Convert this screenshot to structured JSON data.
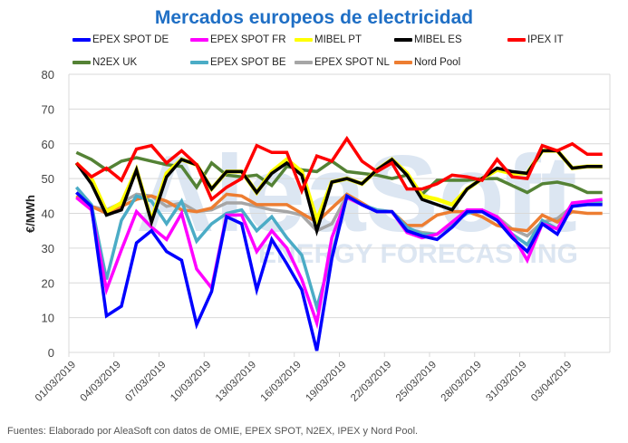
{
  "chart_data": {
    "type": "line",
    "title": "Mercados europeos de electricidad",
    "xlabel": "",
    "ylabel": "€/MWh",
    "ylim": [
      0,
      80
    ],
    "yticks": [
      0,
      10,
      20,
      30,
      40,
      50,
      60,
      70,
      80
    ],
    "grid": true,
    "legend_position": "top",
    "x": [
      "01/03/2019",
      "02/03/2019",
      "03/03/2019",
      "04/03/2019",
      "05/03/2019",
      "06/03/2019",
      "07/03/2019",
      "08/03/2019",
      "09/03/2019",
      "10/03/2019",
      "11/03/2019",
      "12/03/2019",
      "13/03/2019",
      "14/03/2019",
      "15/03/2019",
      "16/03/2019",
      "17/03/2019",
      "18/03/2019",
      "19/03/2019",
      "20/03/2019",
      "21/03/2019",
      "22/03/2019",
      "23/03/2019",
      "24/03/2019",
      "25/03/2019",
      "26/03/2019",
      "27/03/2019",
      "28/03/2019",
      "29/03/2019",
      "30/03/2019",
      "31/03/2019",
      "01/04/2019",
      "02/04/2019",
      "03/04/2019",
      "04/04/2019",
      "05/04/2019"
    ],
    "xtick_labels": [
      "01/03/2019",
      "04/03/2019",
      "07/03/2019",
      "10/03/2019",
      "13/03/2019",
      "16/03/2019",
      "19/03/2019",
      "22/03/2019",
      "25/03/2019",
      "28/03/2019",
      "31/03/2019",
      "03/04/2019"
    ],
    "series": [
      {
        "name": "EPEX SPOT DE",
        "color": "#0000ff",
        "values": [
          46,
          42,
          10.5,
          13.3,
          31.5,
          35,
          29,
          26.5,
          8,
          17.5,
          39,
          37,
          18,
          32.5,
          25.5,
          18,
          0.5,
          27,
          45,
          42.5,
          40.5,
          40.5,
          35,
          33.5,
          32.5,
          36,
          40.5,
          40.5,
          38,
          33,
          29,
          37,
          34,
          42,
          42.5,
          42.5
        ]
      },
      {
        "name": "EPEX SPOT FR",
        "color": "#ff00ff",
        "values": [
          44.5,
          41,
          18,
          29.5,
          40.5,
          36,
          32.5,
          40,
          24,
          18.5,
          39.5,
          39.5,
          29,
          35,
          30,
          21,
          8.5,
          33,
          44.5,
          42.5,
          40.5,
          40.5,
          34.5,
          33,
          34,
          37.5,
          41,
          41,
          39,
          34,
          26.5,
          37,
          35.5,
          43,
          43.5,
          44
        ]
      },
      {
        "name": "MIBEL PT",
        "color": "#ffff00",
        "values": [
          54.5,
          50,
          40.5,
          43,
          52.5,
          38,
          51.5,
          55.5,
          54,
          47,
          52,
          52,
          46,
          52,
          55.5,
          52,
          38,
          49,
          50,
          48.5,
          52.5,
          55.5,
          51.5,
          45,
          44,
          42.5,
          47,
          50,
          52.5,
          51.5,
          51.5,
          58,
          58,
          53,
          53.5,
          53.5
        ]
      },
      {
        "name": "MIBEL ES",
        "color": "#000000",
        "values": [
          54.5,
          48.5,
          39.5,
          41,
          52.5,
          37.5,
          50.5,
          55.5,
          54,
          47,
          52,
          52,
          46,
          51.5,
          54.5,
          51,
          35,
          49,
          50,
          48.5,
          52.5,
          55.5,
          51,
          44,
          42.5,
          41,
          47,
          50,
          53,
          52,
          51.5,
          58,
          58,
          53,
          53.5,
          53.5
        ]
      },
      {
        "name": "IPEX IT",
        "color": "#ff0000",
        "values": [
          54.5,
          50.5,
          53,
          49.5,
          58.5,
          59.5,
          54.5,
          58,
          54,
          44,
          47.5,
          50,
          59.5,
          57.5,
          57.5,
          46.5,
          56.5,
          55,
          61.5,
          55,
          52,
          54.5,
          47,
          47,
          48.5,
          51,
          50.5,
          49.5,
          55.5,
          50.5,
          50,
          59.5,
          58,
          60,
          57,
          57
        ]
      },
      {
        "name": "N2EX UK",
        "color": "#548235",
        "values": [
          57.5,
          55.5,
          52.5,
          55,
          56,
          55,
          54,
          53.5,
          47.5,
          54.5,
          51,
          50.5,
          51,
          48,
          53.5,
          52.5,
          52,
          55,
          52,
          51.5,
          51,
          50,
          51,
          45.5,
          49.5,
          49.5,
          49.5,
          50,
          50,
          48,
          46,
          48.5,
          49,
          48,
          46,
          46
        ]
      },
      {
        "name": "EPEX SPOT BE",
        "color": "#4bacc6",
        "values": [
          47.5,
          42.5,
          21,
          38,
          45,
          43.5,
          37,
          43.5,
          32,
          37,
          40,
          41,
          35,
          39,
          33,
          28,
          13,
          28,
          45,
          42.5,
          41,
          40.5,
          36,
          34,
          34,
          37,
          40,
          41,
          38,
          34,
          31,
          38,
          35.5,
          42.5,
          43.5,
          43.5
        ]
      },
      {
        "name": "EPEX SPOT NL",
        "color": "#a6a6a6",
        "values": [
          46,
          42,
          41,
          43,
          45.5,
          45,
          42,
          43,
          40.5,
          41,
          43,
          43,
          42,
          41,
          40.5,
          39.5,
          35,
          37,
          45,
          42.5,
          40.5,
          40.5,
          35.5,
          34.5,
          34,
          37,
          40.5,
          40.5,
          39,
          35.5,
          33.5,
          37.5,
          38.5,
          42,
          43,
          43
        ]
      },
      {
        "name": "Nord Pool",
        "color": "#ed7d31",
        "values": [
          45,
          42,
          40,
          42,
          44,
          45,
          43.5,
          41,
          40.5,
          41.5,
          45.5,
          45,
          42.5,
          42.5,
          42.5,
          40,
          37.5,
          41.5,
          45.5,
          43,
          40.5,
          40.5,
          36.5,
          36.5,
          39.5,
          40.5,
          40.5,
          39,
          36.5,
          35.5,
          35,
          39.5,
          37.5,
          40.5,
          40,
          40
        ]
      }
    ],
    "watermark": "AleaSoft ENERGY FORECASTING",
    "source_note": "Fuentes: Elaborado por AleaSoft con datos de OMIE, EPEX SPOT, N2EX, IPEX y Nord Pool."
  }
}
